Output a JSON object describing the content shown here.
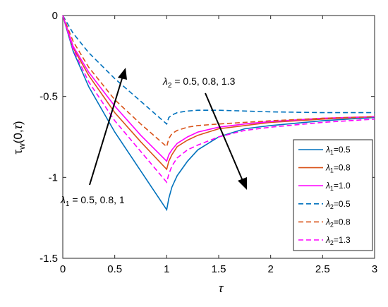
{
  "chart_data": {
    "type": "line",
    "xlabel": "τ",
    "ylabel": "τ_w(0,τ)",
    "xlim": [
      0,
      3
    ],
    "ylim": [
      -1.5,
      0
    ],
    "xticks": [
      0,
      0.5,
      1,
      1.5,
      2,
      2.5,
      3
    ],
    "yticks": [
      0,
      -0.5,
      -1,
      -1.5
    ],
    "xtick_labels": [
      "0",
      "0.5",
      "1",
      "1.5",
      "2",
      "2.5",
      "3"
    ],
    "ytick_labels": [
      "0",
      "-0.5",
      "-1",
      "-1.5"
    ],
    "grid": false,
    "legend_position": "lower-right",
    "series": [
      {
        "legend_symbol": "λ",
        "legend_sub": "1",
        "legend_value": "=0.5",
        "color": "#0072BD",
        "dash": "solid",
        "x": [
          0,
          0.1,
          0.25,
          0.5,
          0.75,
          1,
          1.02,
          1.05,
          1.1,
          1.2,
          1.3,
          1.5,
          1.75,
          2,
          2.5,
          3
        ],
        "y": [
          0,
          -0.22,
          -0.44,
          -0.72,
          -0.96,
          -1.2,
          -1.13,
          -1.06,
          -0.99,
          -0.9,
          -0.83,
          -0.75,
          -0.7,
          -0.68,
          -0.65,
          -0.63
        ]
      },
      {
        "legend_symbol": "λ",
        "legend_sub": "1",
        "legend_value": "=0.8",
        "color": "#D95319",
        "dash": "solid",
        "x": [
          0,
          0.1,
          0.25,
          0.5,
          0.75,
          1,
          1.02,
          1.05,
          1.1,
          1.2,
          1.3,
          1.5,
          1.75,
          2,
          2.5,
          3
        ],
        "y": [
          0,
          -0.2,
          -0.37,
          -0.6,
          -0.78,
          -0.95,
          -0.9,
          -0.86,
          -0.81,
          -0.77,
          -0.74,
          -0.7,
          -0.68,
          -0.66,
          -0.64,
          -0.625
        ]
      },
      {
        "legend_symbol": "λ",
        "legend_sub": "1",
        "legend_value": "=1.0",
        "color": "#FF00FF",
        "dash": "solid",
        "x": [
          0,
          0.1,
          0.25,
          0.5,
          0.75,
          1,
          1.02,
          1.05,
          1.1,
          1.2,
          1.3,
          1.5,
          1.75,
          2,
          2.5,
          3
        ],
        "y": [
          0,
          -0.19,
          -0.35,
          -0.56,
          -0.74,
          -0.9,
          -0.86,
          -0.83,
          -0.79,
          -0.75,
          -0.72,
          -0.69,
          -0.67,
          -0.655,
          -0.635,
          -0.625
        ]
      },
      {
        "legend_symbol": "λ",
        "legend_sub": "2",
        "legend_value": "=0.5",
        "color": "#0072BD",
        "dash": "dashed",
        "x": [
          0,
          0.1,
          0.25,
          0.5,
          0.75,
          1,
          1.02,
          1.05,
          1.1,
          1.2,
          1.3,
          1.5,
          1.75,
          2,
          2.5,
          3
        ],
        "y": [
          0,
          -0.11,
          -0.23,
          -0.39,
          -0.53,
          -0.67,
          -0.63,
          -0.615,
          -0.6,
          -0.59,
          -0.585,
          -0.585,
          -0.59,
          -0.595,
          -0.6,
          -0.6
        ]
      },
      {
        "legend_symbol": "λ",
        "legend_sub": "2",
        "legend_value": "=0.8",
        "color": "#D95319",
        "dash": "dashed",
        "x": [
          0,
          0.1,
          0.25,
          0.5,
          0.75,
          1,
          1.02,
          1.05,
          1.1,
          1.2,
          1.3,
          1.5,
          1.75,
          2,
          2.5,
          3
        ],
        "y": [
          0,
          -0.16,
          -0.32,
          -0.52,
          -0.67,
          -0.81,
          -0.76,
          -0.73,
          -0.71,
          -0.69,
          -0.68,
          -0.67,
          -0.66,
          -0.65,
          -0.635,
          -0.625
        ]
      },
      {
        "legend_symbol": "λ",
        "legend_sub": "2",
        "legend_value": "=1.3",
        "color": "#FF00FF",
        "dash": "dashed",
        "x": [
          0,
          0.1,
          0.25,
          0.5,
          0.75,
          1,
          1.02,
          1.05,
          1.1,
          1.2,
          1.3,
          1.5,
          1.75,
          2,
          2.5,
          3
        ],
        "y": [
          0,
          -0.21,
          -0.41,
          -0.65,
          -0.84,
          -1.03,
          -0.98,
          -0.93,
          -0.88,
          -0.83,
          -0.8,
          -0.75,
          -0.71,
          -0.69,
          -0.66,
          -0.64
        ]
      }
    ],
    "annotations": [
      {
        "symbol": "λ",
        "sub": "1",
        "text": " = 0.5, 0.8, 1"
      },
      {
        "symbol": "λ",
        "sub": "2",
        "text": " = 0.5, 0.8, 1.3"
      }
    ]
  }
}
